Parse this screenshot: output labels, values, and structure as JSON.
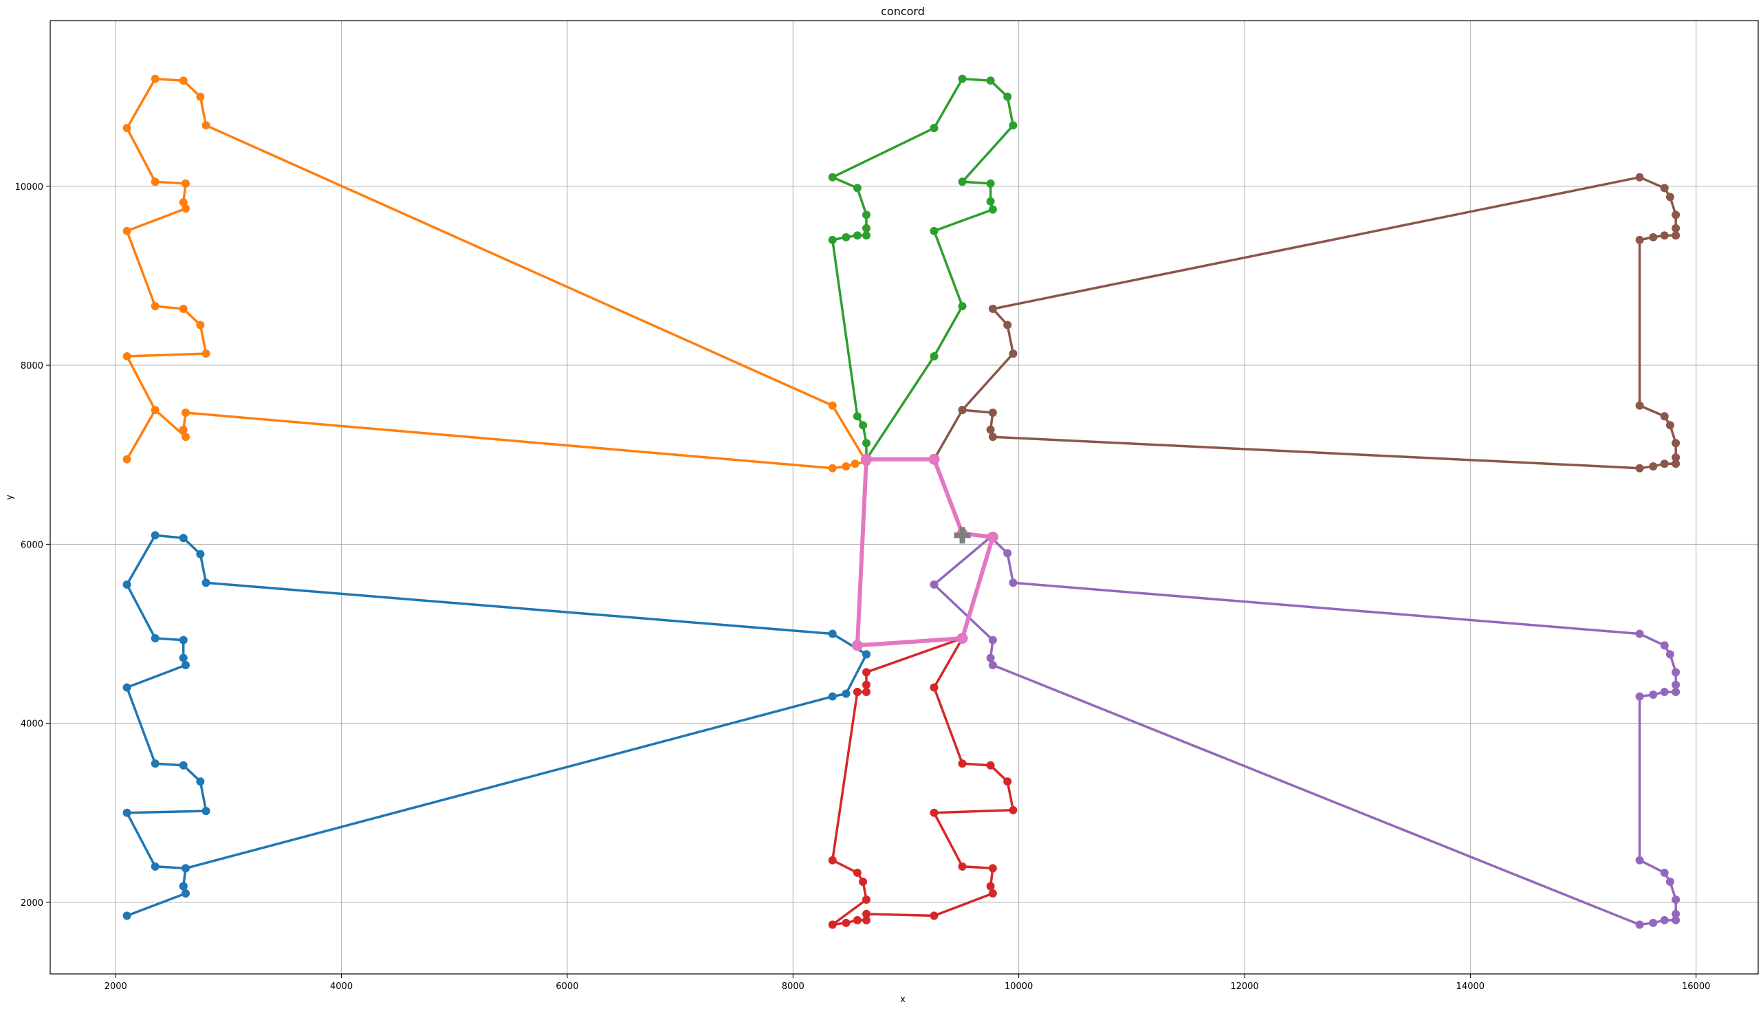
{
  "chart_data": {
    "type": "line",
    "title": "concord",
    "xlabel": "x",
    "ylabel": "y",
    "xlim": [
      1420,
      16550
    ],
    "ylim": [
      1200,
      11850
    ],
    "xticks": [
      2000,
      4000,
      6000,
      8000,
      10000,
      12000,
      14000,
      16000
    ],
    "yticks": [
      2000,
      4000,
      6000,
      8000,
      10000
    ],
    "xtick_labels": [
      "2000",
      "4000",
      "6000",
      "8000",
      "10000",
      "12000",
      "14000",
      "16000"
    ],
    "ytick_labels": [
      "2000",
      "4000",
      "6000",
      "8000",
      "10000"
    ],
    "grid": true,
    "legend": false,
    "depot": {
      "x": 9500,
      "y": 6100,
      "marker": "plus",
      "color": "#7f7f7f"
    },
    "series": [
      {
        "color": "#1f77b4",
        "points": [
          [
            8650,
            4770
          ],
          [
            8350,
            5000
          ],
          [
            2800,
            5570
          ],
          [
            2750,
            5890
          ],
          [
            2600,
            6070
          ],
          [
            2350,
            6100
          ],
          [
            2100,
            5550
          ],
          [
            2350,
            4950
          ],
          [
            2600,
            4930
          ],
          [
            2600,
            4730
          ],
          [
            2620,
            4650
          ],
          [
            2100,
            4400
          ],
          [
            2350,
            3550
          ],
          [
            2600,
            3530
          ],
          [
            2750,
            3350
          ],
          [
            2800,
            3020
          ],
          [
            2100,
            3000
          ],
          [
            2350,
            2400
          ],
          [
            2620,
            2380
          ],
          [
            2600,
            2180
          ],
          [
            2620,
            2100
          ],
          [
            2100,
            1850
          ],
          [
            2620,
            2100
          ],
          [
            2600,
            2180
          ],
          [
            2620,
            2380
          ],
          [
            8350,
            4300
          ],
          [
            8470,
            4330
          ],
          [
            8650,
            4770
          ]
        ]
      },
      {
        "color": "#ff7f0e",
        "points": [
          [
            8650,
            6920
          ],
          [
            8550,
            6900
          ],
          [
            8470,
            6870
          ],
          [
            8350,
            6850
          ],
          [
            2620,
            7470
          ],
          [
            2600,
            7280
          ],
          [
            2620,
            7200
          ],
          [
            2350,
            7500
          ],
          [
            2100,
            6950
          ],
          [
            2350,
            7500
          ],
          [
            2100,
            8100
          ],
          [
            2800,
            8130
          ],
          [
            2750,
            8450
          ],
          [
            2600,
            8630
          ],
          [
            2350,
            8660
          ],
          [
            2100,
            9500
          ],
          [
            2620,
            9750
          ],
          [
            2600,
            9820
          ],
          [
            2620,
            10030
          ],
          [
            2350,
            10050
          ],
          [
            2100,
            10650
          ],
          [
            2350,
            11200
          ],
          [
            2600,
            11180
          ],
          [
            2750,
            11000
          ],
          [
            2800,
            10680
          ],
          [
            8350,
            7550
          ],
          [
            8650,
            6920
          ]
        ]
      },
      {
        "color": "#2ca02c",
        "points": [
          [
            8650,
            6950
          ],
          [
            8650,
            7130
          ],
          [
            8620,
            7330
          ],
          [
            8570,
            7430
          ],
          [
            8350,
            9400
          ],
          [
            8470,
            9430
          ],
          [
            8570,
            9450
          ],
          [
            8650,
            9450
          ],
          [
            8650,
            9530
          ],
          [
            8650,
            9680
          ],
          [
            8570,
            9980
          ],
          [
            8350,
            10100
          ],
          [
            9250,
            10650
          ],
          [
            9500,
            11200
          ],
          [
            9750,
            11180
          ],
          [
            9900,
            11000
          ],
          [
            9950,
            10680
          ],
          [
            9500,
            10050
          ],
          [
            9750,
            10030
          ],
          [
            9750,
            9830
          ],
          [
            9770,
            9740
          ],
          [
            9250,
            9500
          ],
          [
            9500,
            8660
          ],
          [
            9250,
            8100
          ],
          [
            8650,
            6950
          ]
        ]
      },
      {
        "color": "#d62728",
        "points": [
          [
            8570,
            4350
          ],
          [
            8350,
            2470
          ],
          [
            8570,
            2330
          ],
          [
            8620,
            2230
          ],
          [
            8650,
            2030
          ],
          [
            8350,
            1750
          ],
          [
            8470,
            1770
          ],
          [
            8570,
            1800
          ],
          [
            8650,
            1800
          ],
          [
            8650,
            1870
          ],
          [
            9250,
            1850
          ],
          [
            9770,
            2100
          ],
          [
            9750,
            2180
          ],
          [
            9770,
            2380
          ],
          [
            9500,
            2400
          ],
          [
            9250,
            3000
          ],
          [
            9950,
            3030
          ],
          [
            9900,
            3350
          ],
          [
            9750,
            3530
          ],
          [
            9500,
            3550
          ],
          [
            9250,
            4400
          ],
          [
            9500,
            4950
          ],
          [
            8650,
            4570
          ],
          [
            8650,
            4430
          ],
          [
            8650,
            4350
          ],
          [
            8570,
            4350
          ]
        ]
      },
      {
        "color": "#9467bd",
        "points": [
          [
            9750,
            6080
          ],
          [
            9900,
            5900
          ],
          [
            9950,
            5570
          ],
          [
            15500,
            5000
          ],
          [
            15720,
            4870
          ],
          [
            15770,
            4770
          ],
          [
            15820,
            4570
          ],
          [
            15820,
            4430
          ],
          [
            15820,
            4350
          ],
          [
            15720,
            4350
          ],
          [
            15620,
            4320
          ],
          [
            15500,
            4300
          ],
          [
            15500,
            2470
          ],
          [
            15720,
            2330
          ],
          [
            15770,
            2230
          ],
          [
            15820,
            2030
          ],
          [
            15820,
            1870
          ],
          [
            15820,
            1800
          ],
          [
            15720,
            1800
          ],
          [
            15620,
            1770
          ],
          [
            15500,
            1750
          ],
          [
            9770,
            4650
          ],
          [
            9750,
            4730
          ],
          [
            9770,
            4930
          ],
          [
            9250,
            5550
          ],
          [
            9750,
            6080
          ]
        ]
      },
      {
        "color": "#8c564b",
        "points": [
          [
            9250,
            6950
          ],
          [
            9500,
            7500
          ],
          [
            9770,
            7470
          ],
          [
            9750,
            7280
          ],
          [
            9770,
            7200
          ],
          [
            15500,
            6850
          ],
          [
            15620,
            6870
          ],
          [
            15720,
            6900
          ],
          [
            15820,
            6900
          ],
          [
            15820,
            6970
          ],
          [
            15820,
            7130
          ],
          [
            15770,
            7330
          ],
          [
            15720,
            7430
          ],
          [
            15500,
            7550
          ],
          [
            15500,
            9400
          ],
          [
            15620,
            9430
          ],
          [
            15720,
            9450
          ],
          [
            15820,
            9450
          ],
          [
            15820,
            9530
          ],
          [
            15820,
            9680
          ],
          [
            15770,
            9880
          ],
          [
            15720,
            9980
          ],
          [
            15500,
            10100
          ],
          [
            9770,
            8630
          ],
          [
            9900,
            8450
          ],
          [
            9950,
            8130
          ],
          [
            9500,
            7500
          ],
          [
            9250,
            6950
          ]
        ]
      },
      {
        "color": "#e377c2",
        "points": [
          [
            8650,
            6950
          ],
          [
            9250,
            6950
          ],
          [
            9500,
            6120
          ],
          [
            9770,
            6080
          ],
          [
            9500,
            4950
          ],
          [
            8570,
            4870
          ],
          [
            8650,
            6950
          ]
        ]
      }
    ]
  }
}
